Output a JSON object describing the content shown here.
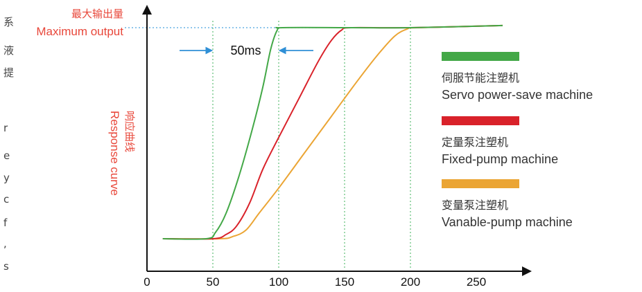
{
  "chart_data": {
    "type": "line",
    "y_max_label_cn": "最大输出量",
    "y_max_label_en": "Maximum output",
    "ylabel_cn": "响应曲线",
    "ylabel_en": "Response curve",
    "xlim": [
      0,
      280
    ],
    "ylim": [
      0,
      1
    ],
    "x_ticks": [
      0,
      50,
      100,
      150,
      200,
      250
    ],
    "vertical_guides": [
      50,
      100,
      150,
      200
    ],
    "max_output_level": 1.0,
    "annotation": {
      "text": "50ms",
      "from": 50,
      "to": 100
    },
    "series": [
      {
        "name_cn": "伺服节能注塑机",
        "name_en": "Servo power-save machine",
        "color": "#43a847",
        "points": [
          [
            12,
            0
          ],
          [
            45,
            0
          ],
          [
            52,
            0.03
          ],
          [
            60,
            0.12
          ],
          [
            70,
            0.3
          ],
          [
            80,
            0.52
          ],
          [
            88,
            0.72
          ],
          [
            94,
            0.9
          ],
          [
            99,
            0.99
          ],
          [
            103,
            1.0
          ],
          [
            155,
            1.0
          ],
          [
            200,
            1.0
          ],
          [
            270,
            1.01
          ]
        ]
      },
      {
        "name_cn": "定量泵注塑机",
        "name_en": "Fixed-pump machine",
        "color": "#d9222a",
        "points": [
          [
            12,
            0
          ],
          [
            50,
            0
          ],
          [
            60,
            0.02
          ],
          [
            68,
            0.06
          ],
          [
            78,
            0.17
          ],
          [
            88,
            0.33
          ],
          [
            100,
            0.48
          ],
          [
            115,
            0.66
          ],
          [
            130,
            0.84
          ],
          [
            140,
            0.94
          ],
          [
            148,
            0.99
          ],
          [
            155,
            1.0
          ],
          [
            200,
            1.0
          ],
          [
            270,
            1.01
          ]
        ]
      },
      {
        "name_cn": "变量泵注塑机",
        "name_en": "Vanable-pump machine",
        "color": "#eba534",
        "points": [
          [
            12,
            0
          ],
          [
            55,
            0
          ],
          [
            65,
            0.01
          ],
          [
            75,
            0.04
          ],
          [
            85,
            0.12
          ],
          [
            100,
            0.24
          ],
          [
            120,
            0.41
          ],
          [
            140,
            0.58
          ],
          [
            160,
            0.75
          ],
          [
            175,
            0.87
          ],
          [
            188,
            0.96
          ],
          [
            198,
            0.995
          ],
          [
            205,
            1.0
          ],
          [
            270,
            1.01
          ]
        ]
      }
    ]
  },
  "side_text": [
    "系",
    "液",
    "提",
    "r",
    "e",
    "y",
    "c",
    "f",
    ",",
    "s"
  ]
}
